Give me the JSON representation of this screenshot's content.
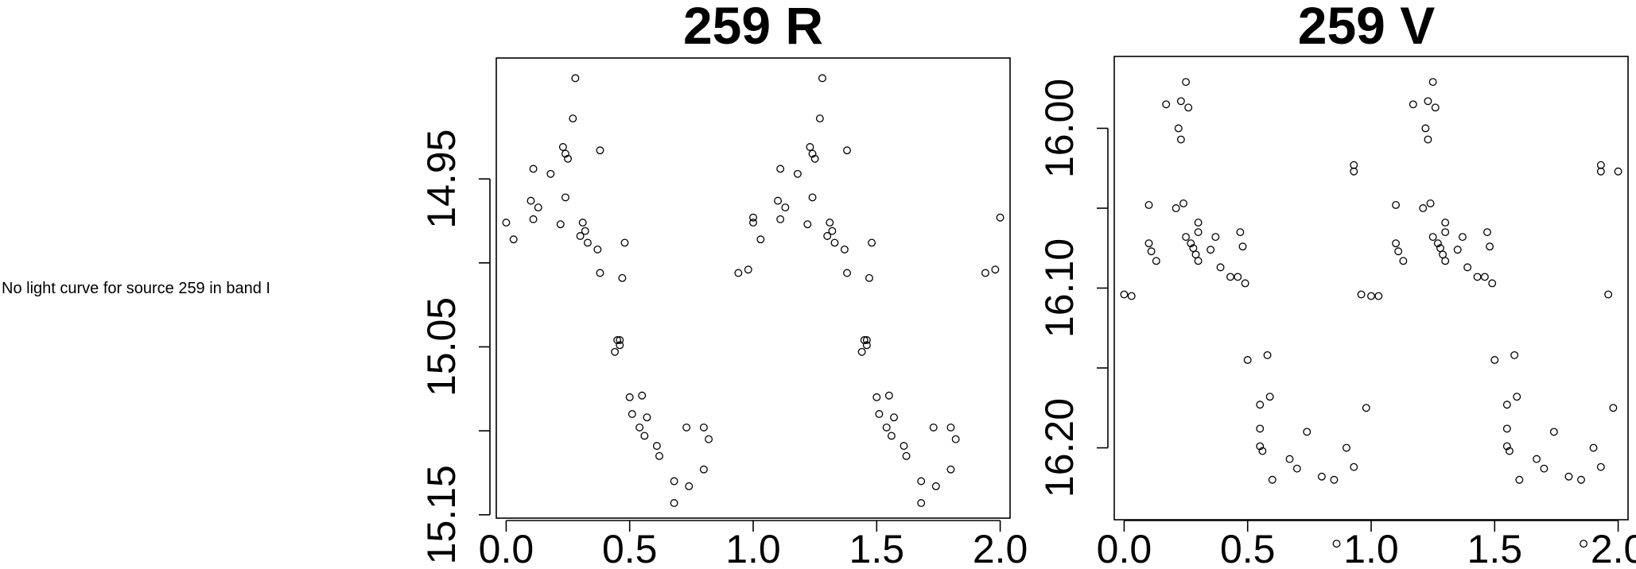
{
  "message": "No light curve for source 259 in band I",
  "chart_data": [
    {
      "type": "scatter",
      "title": "259 R",
      "xlabel": "",
      "ylabel": "",
      "xlim": [
        -0.04,
        2.04
      ],
      "ylim": [
        15.152,
        14.878
      ],
      "y_inverted": true,
      "grid": false,
      "xticks": [
        0.0,
        0.5,
        1.0,
        1.5,
        2.0
      ],
      "xtick_labels": [
        "0.0",
        "0.5",
        "1.0",
        "1.5",
        "2.0"
      ],
      "yticks": [
        14.95,
        15.0,
        15.05,
        15.1,
        15.15
      ],
      "ytick_labels": [
        "14.95",
        "",
        "15.05",
        "",
        "15.15"
      ],
      "points": [
        [
          0.0,
          14.976
        ],
        [
          0.03,
          14.986
        ],
        [
          0.1,
          14.963
        ],
        [
          0.11,
          14.974
        ],
        [
          0.11,
          14.944
        ],
        [
          0.13,
          14.967
        ],
        [
          0.18,
          14.947
        ],
        [
          0.22,
          14.977
        ],
        [
          0.23,
          14.931
        ],
        [
          0.24,
          14.961
        ],
        [
          0.24,
          14.935
        ],
        [
          0.25,
          14.938
        ],
        [
          0.27,
          14.914
        ],
        [
          0.28,
          14.89
        ],
        [
          0.3,
          14.984
        ],
        [
          0.31,
          14.976
        ],
        [
          0.32,
          14.981
        ],
        [
          0.33,
          14.988
        ],
        [
          0.37,
          14.992
        ],
        [
          0.38,
          15.006
        ],
        [
          0.38,
          14.933
        ],
        [
          0.44,
          15.053
        ],
        [
          0.45,
          15.046
        ],
        [
          0.46,
          15.049
        ],
        [
          0.46,
          15.046
        ],
        [
          0.47,
          15.009
        ],
        [
          0.48,
          14.988
        ],
        [
          0.5,
          15.08
        ],
        [
          0.51,
          15.09
        ],
        [
          0.54,
          15.098
        ],
        [
          0.55,
          15.079
        ],
        [
          0.56,
          15.103
        ],
        [
          0.57,
          15.092
        ],
        [
          0.61,
          15.109
        ],
        [
          0.62,
          15.115
        ],
        [
          0.68,
          15.13
        ],
        [
          0.68,
          15.143
        ],
        [
          0.73,
          15.098
        ],
        [
          0.74,
          15.133
        ],
        [
          0.8,
          15.098
        ],
        [
          0.8,
          15.123
        ],
        [
          0.82,
          15.105
        ],
        [
          0.94,
          15.006
        ],
        [
          0.98,
          15.004
        ],
        [
          1.0,
          14.976
        ],
        [
          1.0,
          14.973
        ],
        [
          1.03,
          14.986
        ],
        [
          1.1,
          14.963
        ],
        [
          1.11,
          14.974
        ],
        [
          1.11,
          14.944
        ],
        [
          1.13,
          14.967
        ],
        [
          1.18,
          14.947
        ],
        [
          1.22,
          14.977
        ],
        [
          1.23,
          14.931
        ],
        [
          1.24,
          14.961
        ],
        [
          1.24,
          14.935
        ],
        [
          1.25,
          14.938
        ],
        [
          1.27,
          14.914
        ],
        [
          1.28,
          14.89
        ],
        [
          1.3,
          14.984
        ],
        [
          1.31,
          14.976
        ],
        [
          1.32,
          14.981
        ],
        [
          1.33,
          14.988
        ],
        [
          1.37,
          14.992
        ],
        [
          1.38,
          15.006
        ],
        [
          1.38,
          14.933
        ],
        [
          1.44,
          15.053
        ],
        [
          1.45,
          15.046
        ],
        [
          1.46,
          15.049
        ],
        [
          1.46,
          15.046
        ],
        [
          1.47,
          15.009
        ],
        [
          1.48,
          14.988
        ],
        [
          1.5,
          15.08
        ],
        [
          1.51,
          15.09
        ],
        [
          1.54,
          15.098
        ],
        [
          1.55,
          15.079
        ],
        [
          1.56,
          15.103
        ],
        [
          1.57,
          15.092
        ],
        [
          1.61,
          15.109
        ],
        [
          1.62,
          15.115
        ],
        [
          1.68,
          15.13
        ],
        [
          1.68,
          15.143
        ],
        [
          1.73,
          15.098
        ],
        [
          1.74,
          15.133
        ],
        [
          1.8,
          15.098
        ],
        [
          1.8,
          15.123
        ],
        [
          1.82,
          15.105
        ],
        [
          1.94,
          15.006
        ],
        [
          1.98,
          15.004
        ],
        [
          2.0,
          14.973
        ]
      ]
    },
    {
      "type": "scatter",
      "title": "259 V",
      "xlabel": "",
      "ylabel": "",
      "xlim": [
        -0.04,
        2.04
      ],
      "ylim": [
        16.245,
        15.955
      ],
      "y_inverted": true,
      "grid": false,
      "xticks": [
        0.0,
        0.5,
        1.0,
        1.5,
        2.0
      ],
      "xtick_labels": [
        "0.0",
        "0.5",
        "1.0",
        "1.5",
        "2.0"
      ],
      "yticks": [
        16.0,
        16.05,
        16.1,
        16.15,
        16.2
      ],
      "ytick_labels": [
        "16.00",
        "",
        "16.10",
        "",
        "16.20"
      ],
      "points": [
        [
          0.0,
          16.104
        ],
        [
          0.03,
          16.105
        ],
        [
          0.1,
          16.048
        ],
        [
          0.1,
          16.072
        ],
        [
          0.11,
          16.077
        ],
        [
          0.13,
          16.083
        ],
        [
          0.17,
          15.985
        ],
        [
          0.21,
          16.05
        ],
        [
          0.22,
          16.0
        ],
        [
          0.23,
          16.007
        ],
        [
          0.23,
          15.983
        ],
        [
          0.24,
          16.047
        ],
        [
          0.25,
          15.971
        ],
        [
          0.25,
          16.068
        ],
        [
          0.26,
          15.987
        ],
        [
          0.27,
          16.072
        ],
        [
          0.28,
          16.075
        ],
        [
          0.29,
          16.079
        ],
        [
          0.3,
          16.083
        ],
        [
          0.3,
          16.059
        ],
        [
          0.3,
          16.065
        ],
        [
          0.35,
          16.076
        ],
        [
          0.37,
          16.068
        ],
        [
          0.39,
          16.087
        ],
        [
          0.43,
          16.093
        ],
        [
          0.46,
          16.093
        ],
        [
          0.47,
          16.065
        ],
        [
          0.48,
          16.074
        ],
        [
          0.49,
          16.097
        ],
        [
          0.5,
          16.145
        ],
        [
          0.55,
          16.173
        ],
        [
          0.55,
          16.188
        ],
        [
          0.55,
          16.199
        ],
        [
          0.56,
          16.202
        ],
        [
          0.58,
          16.142
        ],
        [
          0.59,
          16.168
        ],
        [
          0.6,
          16.22
        ],
        [
          0.67,
          16.207
        ],
        [
          0.7,
          16.213
        ],
        [
          0.74,
          16.19
        ],
        [
          0.8,
          16.218
        ],
        [
          0.85,
          16.22
        ],
        [
          0.86,
          16.26
        ],
        [
          0.9,
          16.2
        ],
        [
          0.93,
          16.212
        ],
        [
          0.93,
          16.023
        ],
        [
          0.93,
          16.027
        ],
        [
          0.96,
          16.104
        ],
        [
          0.98,
          16.175
        ],
        [
          1.0,
          16.105
        ],
        [
          1.03,
          16.105
        ],
        [
          1.1,
          16.048
        ],
        [
          1.1,
          16.072
        ],
        [
          1.11,
          16.077
        ],
        [
          1.13,
          16.083
        ],
        [
          1.17,
          15.985
        ],
        [
          1.21,
          16.05
        ],
        [
          1.22,
          16.0
        ],
        [
          1.23,
          16.007
        ],
        [
          1.23,
          15.983
        ],
        [
          1.24,
          16.047
        ],
        [
          1.25,
          15.971
        ],
        [
          1.25,
          16.068
        ],
        [
          1.26,
          15.987
        ],
        [
          1.27,
          16.072
        ],
        [
          1.28,
          16.075
        ],
        [
          1.29,
          16.079
        ],
        [
          1.3,
          16.083
        ],
        [
          1.3,
          16.059
        ],
        [
          1.3,
          16.065
        ],
        [
          1.35,
          16.076
        ],
        [
          1.37,
          16.068
        ],
        [
          1.39,
          16.087
        ],
        [
          1.43,
          16.093
        ],
        [
          1.46,
          16.093
        ],
        [
          1.47,
          16.065
        ],
        [
          1.48,
          16.074
        ],
        [
          1.49,
          16.097
        ],
        [
          1.5,
          16.145
        ],
        [
          1.55,
          16.173
        ],
        [
          1.55,
          16.188
        ],
        [
          1.55,
          16.199
        ],
        [
          1.56,
          16.202
        ],
        [
          1.58,
          16.142
        ],
        [
          1.59,
          16.168
        ],
        [
          1.6,
          16.22
        ],
        [
          1.67,
          16.207
        ],
        [
          1.7,
          16.213
        ],
        [
          1.74,
          16.19
        ],
        [
          1.8,
          16.218
        ],
        [
          1.85,
          16.22
        ],
        [
          1.86,
          16.26
        ],
        [
          1.9,
          16.2
        ],
        [
          1.93,
          16.212
        ],
        [
          1.93,
          16.023
        ],
        [
          1.93,
          16.027
        ],
        [
          1.96,
          16.104
        ],
        [
          1.98,
          16.175
        ],
        [
          2.0,
          16.027
        ]
      ]
    }
  ]
}
